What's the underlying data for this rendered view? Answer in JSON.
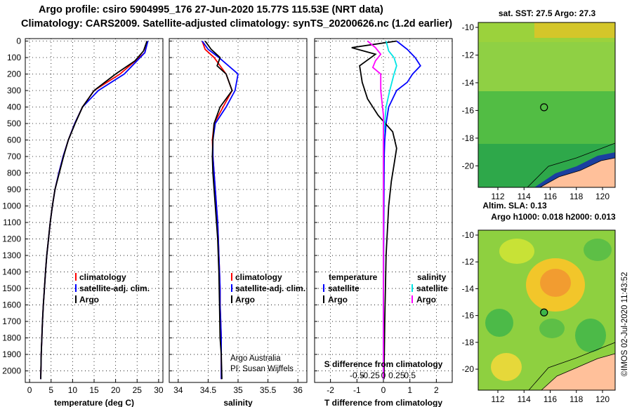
{
  "title": {
    "line1": "Argo profile: csiro 5904995_176 27-Jun-2020 15.77S 115.53E (NRT data)",
    "line2": "Climatology: CARS2009. Satellite-adjusted climatology: synTS_20200626.nc (1.2d earlier)"
  },
  "colors": {
    "climatology": "#ff0000",
    "satellite": "#0000ff",
    "argo": "#000000",
    "s_satellite": "#00e5e5",
    "s_argo": "#ff00ff",
    "land": "#ffc09a",
    "map_green": "#3cb64a"
  },
  "depth_ticks": [
    "0",
    "100",
    "200",
    "300",
    "400",
    "500",
    "600",
    "700",
    "800",
    "900",
    "1000",
    "1100",
    "1200",
    "1300",
    "1400",
    "1500",
    "1600",
    "1700",
    "1800",
    "1900",
    "2000"
  ],
  "panels": {
    "temperature": {
      "xlabel": "temperature (deg C)",
      "xticks": [
        "0",
        "5",
        "10",
        "15",
        "20",
        "25",
        "30"
      ],
      "legend": [
        "climatology",
        "satellite-adj. clim.",
        "Argo"
      ]
    },
    "salinity": {
      "xlabel": "salinity",
      "xticks": [
        "34",
        "34.5",
        "35",
        "35.5",
        "36"
      ],
      "legend": [
        "climatology",
        "satellite-adj. clim.",
        "Argo"
      ],
      "note1": "Argo Australia",
      "note2": "PI: Susan Wijffels"
    },
    "difference": {
      "xlabel": "T difference from climatology",
      "xticks": [
        "-2",
        "-1",
        "0",
        "1",
        "2"
      ],
      "s_axis_label": "S difference from climatology",
      "s_ticks": [
        "-0.5",
        "-0.25",
        "0",
        "0.25",
        "0.5"
      ],
      "legend_t_head": "temperature",
      "legend_s_head": "salinity",
      "legend_sat": "satellite",
      "legend_argo": "Argo"
    }
  },
  "maps": {
    "sst_title": "sat. SST: 27.5 Argo: 27.3",
    "altim_title1": "Altim. SLA: 0.13",
    "altim_title2": "Argo h1000: 0.018 h2000: 0.013",
    "lat_ticks": [
      "-10",
      "-12",
      "-14",
      "-16",
      "-18",
      "-20"
    ],
    "lon_ticks": [
      "112",
      "114",
      "116",
      "118",
      "120"
    ]
  },
  "footer": "©IMOS 02-Jul-2020 11:43:52",
  "chart_data": [
    {
      "type": "line",
      "panel": "temperature",
      "x_label": "temperature (deg C)",
      "y_label": "",
      "xlim": [
        -1,
        31
      ],
      "ylim": [
        2070,
        0
      ],
      "series": [
        {
          "name": "climatology",
          "x": [
            27.3,
            26.8,
            21,
            15,
            12.3,
            10.5,
            9,
            7.8,
            6.8,
            5.9,
            5.3,
            4.8,
            4.4,
            4.0,
            3.7,
            3.45,
            3.2,
            3.0,
            2.85,
            2.7,
            2.6
          ],
          "y": [
            0,
            70,
            200,
            300,
            400,
            500,
            600,
            700,
            800,
            900,
            1000,
            1100,
            1200,
            1300,
            1400,
            1500,
            1600,
            1700,
            1800,
            1900,
            2050
          ]
        },
        {
          "name": "satellite-adj. clim.",
          "x": [
            27.5,
            26.8,
            22,
            16,
            12.3,
            10.5,
            9,
            7.8,
            6.8,
            5.9,
            5.3,
            4.8,
            4.4,
            4.0,
            3.7,
            3.45,
            3.2,
            3.0,
            2.85,
            2.7,
            2.6
          ],
          "y": [
            0,
            70,
            200,
            300,
            400,
            500,
            600,
            700,
            800,
            900,
            1000,
            1100,
            1200,
            1300,
            1400,
            1500,
            1600,
            1700,
            1800,
            1900,
            2050
          ]
        },
        {
          "name": "Argo",
          "x": [
            27.3,
            26.5,
            24.5,
            20,
            15,
            12.3,
            10.6,
            9,
            7.9,
            6.9,
            5.9,
            5.3,
            4.8,
            4.4,
            4.0,
            3.7,
            3.45,
            3.2,
            3.0,
            2.85,
            2.7,
            2.6
          ],
          "y": [
            0,
            60,
            120,
            200,
            300,
            400,
            500,
            600,
            700,
            800,
            900,
            1000,
            1100,
            1200,
            1300,
            1400,
            1500,
            1600,
            1700,
            1800,
            1900,
            2050
          ]
        }
      ]
    },
    {
      "type": "line",
      "panel": "salinity",
      "x_label": "salinity",
      "y_label": "",
      "xlim": [
        33.85,
        36.15
      ],
      "ylim": [
        2070,
        0
      ],
      "series": [
        {
          "name": "climatology",
          "x": [
            34.4,
            34.45,
            34.6,
            34.8,
            34.9,
            34.75,
            34.6,
            34.57,
            34.58,
            34.6,
            34.62,
            34.64,
            34.66,
            34.67,
            34.68,
            34.69,
            34.7,
            34.7,
            34.71,
            34.72,
            34.72
          ],
          "y": [
            0,
            50,
            100,
            200,
            300,
            400,
            500,
            600,
            700,
            800,
            900,
            1000,
            1100,
            1200,
            1300,
            1400,
            1500,
            1600,
            1700,
            1800,
            2050
          ]
        },
        {
          "name": "satellite-adj. clim.",
          "x": [
            34.4,
            34.5,
            34.68,
            35.0,
            34.95,
            34.8,
            34.62,
            34.58,
            34.58,
            34.6,
            34.62,
            34.64,
            34.66,
            34.67,
            34.68,
            34.69,
            34.7,
            34.7,
            34.71,
            34.72,
            34.72
          ],
          "y": [
            0,
            50,
            100,
            200,
            300,
            400,
            500,
            600,
            700,
            800,
            900,
            1000,
            1100,
            1200,
            1300,
            1400,
            1500,
            1600,
            1700,
            1800,
            2050
          ]
        },
        {
          "name": "Argo",
          "x": [
            34.45,
            34.55,
            34.7,
            34.65,
            34.8,
            34.9,
            34.7,
            34.6,
            34.58,
            34.57,
            34.58,
            34.6,
            34.62,
            34.64,
            34.66,
            34.68,
            34.69,
            34.7,
            34.72,
            34.73
          ],
          "y": [
            0,
            50,
            100,
            150,
            200,
            300,
            400,
            500,
            600,
            700,
            800,
            900,
            1000,
            1100,
            1200,
            1400,
            1600,
            1800,
            1900,
            2050
          ]
        }
      ]
    },
    {
      "type": "line",
      "panel": "difference",
      "x_label": "T difference from climatology",
      "y_label": "",
      "xlim": [
        -2.6,
        2.6
      ],
      "ylim": [
        2070,
        0
      ],
      "series": [
        {
          "name": "satellite",
          "x": [
            0.5,
            0.9,
            1.2,
            1.4,
            1.1,
            0.9,
            0.5,
            0.2,
            0.1,
            0.05,
            0.03,
            0.02,
            0.01,
            0.0,
            0.0
          ],
          "y": [
            0,
            50,
            100,
            150,
            200,
            250,
            300,
            400,
            500,
            600,
            700,
            900,
            1200,
            1600,
            2050
          ]
        },
        {
          "name": "Argo",
          "x": [
            0.5,
            -1.2,
            -0.3,
            -0.9,
            -0.8,
            -0.6,
            -0.2,
            0.35,
            0.5,
            0.4,
            0.3,
            0.2,
            0.1,
            0.05,
            0.02
          ],
          "y": [
            0,
            40,
            80,
            150,
            250,
            350,
            450,
            550,
            650,
            750,
            850,
            1000,
            1300,
            1700,
            2050
          ]
        }
      ]
    }
  ]
}
